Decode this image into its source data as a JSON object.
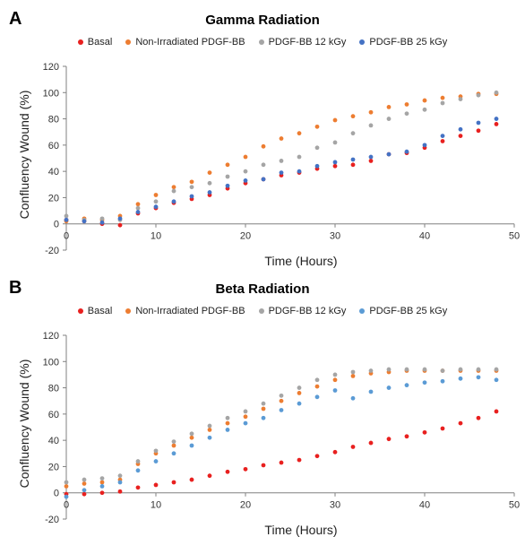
{
  "chart_data": [
    {
      "type": "scatter",
      "panel_label": "A",
      "title": "Gamma Radiation",
      "xlabel": "Time (Hours)",
      "ylabel": "Confluency Wound (%)",
      "xlim": [
        0,
        50
      ],
      "ylim": [
        -20,
        120
      ],
      "xticks": [
        "0",
        "10",
        "20",
        "30",
        "40",
        "50"
      ],
      "yticks": [
        "-20",
        "0",
        "20",
        "40",
        "60",
        "80",
        "100",
        "120"
      ],
      "grid": false,
      "legend_position": "top",
      "series": [
        {
          "name": "Basal",
          "color": "#e8201f",
          "points": [
            [
              0,
              3
            ],
            [
              2,
              2
            ],
            [
              4,
              0
            ],
            [
              6,
              -1
            ],
            [
              8,
              8
            ],
            [
              10,
              12
            ],
            [
              12,
              16
            ],
            [
              14,
              19
            ],
            [
              16,
              22
            ],
            [
              18,
              27
            ],
            [
              20,
              31
            ],
            [
              22,
              34
            ],
            [
              24,
              37
            ],
            [
              26,
              39
            ],
            [
              28,
              42
            ],
            [
              30,
              44
            ],
            [
              32,
              45
            ],
            [
              34,
              48
            ],
            [
              36,
              53
            ],
            [
              38,
              54
            ],
            [
              40,
              58
            ],
            [
              42,
              63
            ],
            [
              44,
              67
            ],
            [
              46,
              71
            ],
            [
              48,
              76
            ]
          ]
        },
        {
          "name": "Non-Irradiated PDGF-BB",
          "color": "#ed7d31",
          "points": [
            [
              0,
              2
            ],
            [
              2,
              4
            ],
            [
              4,
              3
            ],
            [
              6,
              6
            ],
            [
              8,
              15
            ],
            [
              10,
              22
            ],
            [
              12,
              28
            ],
            [
              14,
              32
            ],
            [
              16,
              39
            ],
            [
              18,
              45
            ],
            [
              20,
              51
            ],
            [
              22,
              59
            ],
            [
              24,
              65
            ],
            [
              26,
              69
            ],
            [
              28,
              74
            ],
            [
              30,
              79
            ],
            [
              32,
              82
            ],
            [
              34,
              85
            ],
            [
              36,
              89
            ],
            [
              38,
              91
            ],
            [
              40,
              94
            ],
            [
              42,
              96
            ],
            [
              44,
              97
            ],
            [
              46,
              99
            ],
            [
              48,
              99
            ]
          ]
        },
        {
          "name": "PDGF-BB 12 kGy",
          "color": "#a5a5a5",
          "points": [
            [
              0,
              6
            ],
            [
              2,
              3
            ],
            [
              4,
              4
            ],
            [
              6,
              3
            ],
            [
              8,
              12
            ],
            [
              10,
              17
            ],
            [
              12,
              25
            ],
            [
              14,
              28
            ],
            [
              16,
              31
            ],
            [
              18,
              36
            ],
            [
              20,
              40
            ],
            [
              22,
              45
            ],
            [
              24,
              48
            ],
            [
              26,
              51
            ],
            [
              28,
              58
            ],
            [
              30,
              62
            ],
            [
              32,
              69
            ],
            [
              34,
              75
            ],
            [
              36,
              80
            ],
            [
              38,
              84
            ],
            [
              40,
              87
            ],
            [
              42,
              92
            ],
            [
              44,
              95
            ],
            [
              46,
              98
            ],
            [
              48,
              100
            ]
          ]
        },
        {
          "name": "PDGF-BB 25 kGy",
          "color": "#4472c4",
          "points": [
            [
              0,
              3
            ],
            [
              2,
              2
            ],
            [
              4,
              1
            ],
            [
              6,
              4
            ],
            [
              8,
              9
            ],
            [
              10,
              13
            ],
            [
              12,
              17
            ],
            [
              14,
              21
            ],
            [
              16,
              24
            ],
            [
              18,
              29
            ],
            [
              20,
              33
            ],
            [
              22,
              34
            ],
            [
              24,
              39
            ],
            [
              26,
              40
            ],
            [
              28,
              44
            ],
            [
              30,
              47
            ],
            [
              32,
              49
            ],
            [
              34,
              51
            ],
            [
              36,
              53
            ],
            [
              38,
              55
            ],
            [
              40,
              60
            ],
            [
              42,
              67
            ],
            [
              44,
              72
            ],
            [
              46,
              77
            ],
            [
              48,
              80
            ]
          ]
        }
      ]
    },
    {
      "type": "scatter",
      "panel_label": "B",
      "title": "Beta Radiation",
      "xlabel": "Time (Hours)",
      "ylabel": "Confluency Wound (%)",
      "xlim": [
        0,
        50
      ],
      "ylim": [
        -20,
        120
      ],
      "xticks": [
        "0",
        "10",
        "20",
        "30",
        "40",
        "50"
      ],
      "yticks": [
        "-20",
        "0",
        "20",
        "40",
        "60",
        "80",
        "100",
        "120"
      ],
      "grid": false,
      "legend_position": "top",
      "series": [
        {
          "name": "Basal",
          "color": "#e8201f",
          "points": [
            [
              0,
              -1
            ],
            [
              2,
              -1
            ],
            [
              4,
              0
            ],
            [
              6,
              1
            ],
            [
              8,
              4
            ],
            [
              10,
              6
            ],
            [
              12,
              8
            ],
            [
              14,
              10
            ],
            [
              16,
              13
            ],
            [
              18,
              16
            ],
            [
              20,
              18
            ],
            [
              22,
              21
            ],
            [
              24,
              23
            ],
            [
              26,
              25
            ],
            [
              28,
              28
            ],
            [
              30,
              31
            ],
            [
              32,
              35
            ],
            [
              34,
              38
            ],
            [
              36,
              41
            ],
            [
              38,
              43
            ],
            [
              40,
              46
            ],
            [
              42,
              49
            ],
            [
              44,
              53
            ],
            [
              46,
              57
            ],
            [
              48,
              62
            ]
          ]
        },
        {
          "name": "Non-Irradiated PDGF-BB",
          "color": "#ed7d31",
          "points": [
            [
              0,
              5
            ],
            [
              2,
              7
            ],
            [
              4,
              8
            ],
            [
              6,
              10
            ],
            [
              8,
              22
            ],
            [
              10,
              30
            ],
            [
              12,
              36
            ],
            [
              14,
              42
            ],
            [
              16,
              48
            ],
            [
              18,
              53
            ],
            [
              20,
              58
            ],
            [
              22,
              64
            ],
            [
              24,
              70
            ],
            [
              26,
              76
            ],
            [
              28,
              81
            ],
            [
              30,
              86
            ],
            [
              32,
              89
            ],
            [
              34,
              91
            ],
            [
              36,
              92
            ],
            [
              38,
              93
            ],
            [
              40,
              93
            ],
            [
              42,
              93
            ],
            [
              44,
              93
            ],
            [
              46,
              93
            ],
            [
              48,
              93
            ]
          ]
        },
        {
          "name": "PDGF-BB 12 kGy",
          "color": "#a5a5a5",
          "points": [
            [
              0,
              8
            ],
            [
              2,
              10
            ],
            [
              4,
              11
            ],
            [
              6,
              13
            ],
            [
              8,
              24
            ],
            [
              10,
              32
            ],
            [
              12,
              39
            ],
            [
              14,
              45
            ],
            [
              16,
              51
            ],
            [
              18,
              57
            ],
            [
              20,
              62
            ],
            [
              22,
              68
            ],
            [
              24,
              74
            ],
            [
              26,
              80
            ],
            [
              28,
              86
            ],
            [
              30,
              90
            ],
            [
              32,
              92
            ],
            [
              34,
              93
            ],
            [
              36,
              94
            ],
            [
              38,
              94
            ],
            [
              40,
              94
            ],
            [
              42,
              93
            ],
            [
              44,
              94
            ],
            [
              46,
              94
            ],
            [
              48,
              94
            ]
          ]
        },
        {
          "name": "PDGF-BB 25 kGy",
          "color": "#5b9bd5",
          "points": [
            [
              0,
              -3
            ],
            [
              2,
              2
            ],
            [
              4,
              5
            ],
            [
              6,
              8
            ],
            [
              8,
              17
            ],
            [
              10,
              24
            ],
            [
              12,
              30
            ],
            [
              14,
              36
            ],
            [
              16,
              42
            ],
            [
              18,
              48
            ],
            [
              20,
              53
            ],
            [
              22,
              57
            ],
            [
              24,
              63
            ],
            [
              26,
              68
            ],
            [
              28,
              73
            ],
            [
              30,
              78
            ],
            [
              32,
              72
            ],
            [
              34,
              77
            ],
            [
              36,
              80
            ],
            [
              38,
              82
            ],
            [
              40,
              84
            ],
            [
              42,
              85
            ],
            [
              44,
              87
            ],
            [
              46,
              88
            ],
            [
              48,
              86
            ]
          ]
        }
      ]
    }
  ]
}
